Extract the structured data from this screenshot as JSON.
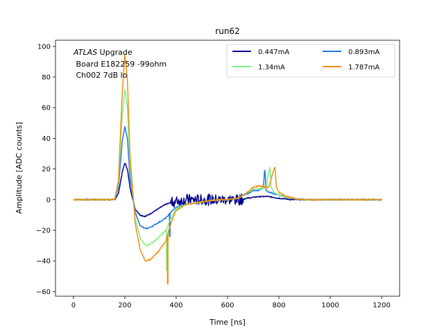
{
  "chart_data": {
    "type": "line",
    "title": "run62",
    "xlabel": "Time [ns]",
    "ylabel": "Amplitude [ADC counts]",
    "xlim": [
      -70,
      1270
    ],
    "ylim": [
      -63,
      104
    ],
    "xticks": [
      0,
      200,
      400,
      600,
      800,
      1000,
      1200
    ],
    "yticks": [
      -60,
      -40,
      -20,
      0,
      20,
      40,
      60,
      80,
      100
    ],
    "grid": false,
    "legend_position": "top-right",
    "legend_columns": 2,
    "annotation": {
      "italic": "ATLAS",
      "rest": " Upgrade",
      "line2": " Board E182259 -99ohm",
      "line3": " Ch002 7dB lo"
    },
    "series": [
      {
        "name": "0.447mA",
        "color": "#00008b",
        "x": [
          0,
          160,
          175,
          190,
          200,
          210,
          220,
          240,
          260,
          280,
          300,
          330,
          360,
          400,
          440,
          480,
          520,
          560,
          600,
          640,
          680,
          720,
          760,
          800,
          850,
          900,
          950,
          1000,
          1100,
          1200
        ],
        "y": [
          0,
          0,
          4,
          18,
          24,
          20,
          8,
          -6,
          -10,
          -11,
          -9,
          -6,
          -3,
          -1,
          0,
          0,
          0,
          0,
          0,
          0,
          1,
          2,
          2,
          1,
          0,
          0,
          0,
          0,
          0,
          0
        ],
        "noise": {
          "from": 380,
          "to": 660,
          "amp": 3.5
        }
      },
      {
        "name": "0.893mA",
        "color": "#1e78e6",
        "x": [
          0,
          160,
          175,
          190,
          200,
          210,
          220,
          240,
          260,
          280,
          300,
          330,
          360,
          380,
          400,
          440,
          480,
          520,
          560,
          600,
          640,
          680,
          700,
          720,
          740,
          745,
          750,
          760,
          780,
          800,
          850,
          900,
          950,
          1000,
          1100,
          1200
        ],
        "y": [
          0,
          0,
          8,
          38,
          48,
          40,
          14,
          -8,
          -17,
          -19,
          -18,
          -15,
          -12,
          -8,
          -5,
          -3,
          -2,
          -1,
          0,
          0,
          1,
          4,
          6,
          6,
          8,
          22,
          6,
          5,
          4,
          3,
          1,
          0,
          0,
          0,
          0,
          0
        ],
        "spike": {
          "x": 375,
          "y": -24
        }
      },
      {
        "name": "1.34mA",
        "color": "#7cf07c",
        "x": [
          0,
          160,
          175,
          190,
          200,
          210,
          220,
          240,
          260,
          280,
          300,
          330,
          360,
          380,
          400,
          440,
          480,
          520,
          560,
          600,
          640,
          680,
          700,
          720,
          750,
          765,
          770,
          780,
          800,
          850,
          900,
          950,
          1000,
          1100,
          1200
        ],
        "y": [
          0,
          0,
          10,
          56,
          72,
          60,
          22,
          -12,
          -25,
          -30,
          -29,
          -25,
          -20,
          -12,
          -6,
          -3,
          -2,
          -1,
          0,
          0,
          1,
          5,
          7,
          7,
          8,
          22,
          8,
          5,
          3,
          1,
          0,
          0,
          0,
          0,
          0
        ],
        "spike": {
          "x": 362,
          "y": -46
        }
      },
      {
        "name": "1.787mA",
        "color": "#f28c0e",
        "x": [
          0,
          160,
          175,
          190,
          200,
          210,
          220,
          240,
          260,
          280,
          300,
          330,
          360,
          380,
          400,
          440,
          480,
          520,
          560,
          600,
          640,
          680,
          700,
          720,
          760,
          785,
          790,
          800,
          820,
          850,
          900,
          950,
          1000,
          1100,
          1200
        ],
        "y": [
          0,
          0,
          12,
          70,
          95,
          78,
          30,
          -15,
          -33,
          -40,
          -39,
          -34,
          -27,
          -15,
          -7,
          -3,
          -2,
          -1,
          0,
          0,
          1,
          5,
          8,
          9,
          8,
          22,
          8,
          5,
          3,
          1,
          0,
          0,
          0,
          0,
          0
        ],
        "spike": {
          "x": 367,
          "y": -55
        }
      }
    ]
  }
}
